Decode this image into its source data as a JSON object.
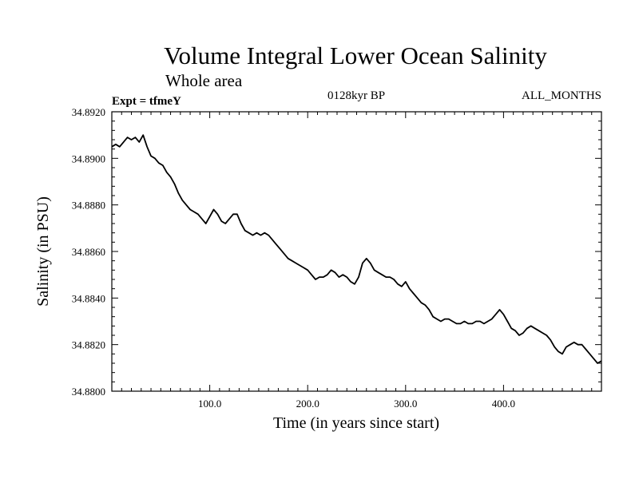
{
  "chart_data": {
    "type": "line",
    "title": "Volume Integral Lower Ocean Salinity",
    "subtitle": "Whole area",
    "left_label": "Expt = tfmeY",
    "center_label": "0128kyr BP",
    "right_label": "ALL_MONTHS",
    "xlabel": "Time (in years since start)",
    "ylabel": "Salinity (in PSU)",
    "xlim": [
      0,
      500
    ],
    "ylim": [
      34.88,
      34.892
    ],
    "xticks": [
      100,
      200,
      300,
      400
    ],
    "xtick_labels": [
      "100.0",
      "200.0",
      "300.0",
      "400.0"
    ],
    "yticks": [
      34.88,
      34.882,
      34.884,
      34.886,
      34.888,
      34.89,
      34.892
    ],
    "ytick_labels": [
      "34.8800",
      "34.8820",
      "34.8840",
      "34.8860",
      "34.8880",
      "34.8900",
      "34.8920"
    ],
    "grid": false,
    "series": [
      {
        "color": "#000000",
        "x": [
          0,
          4,
          8,
          12,
          16,
          20,
          24,
          28,
          32,
          36,
          40,
          44,
          48,
          52,
          56,
          60,
          64,
          68,
          72,
          76,
          80,
          84,
          88,
          92,
          96,
          100,
          104,
          108,
          112,
          116,
          120,
          124,
          128,
          132,
          136,
          140,
          144,
          148,
          152,
          156,
          160,
          164,
          168,
          172,
          176,
          180,
          184,
          188,
          192,
          196,
          200,
          204,
          208,
          212,
          216,
          220,
          224,
          228,
          232,
          236,
          240,
          244,
          248,
          252,
          256,
          260,
          264,
          268,
          272,
          276,
          280,
          284,
          288,
          292,
          296,
          300,
          304,
          308,
          312,
          316,
          320,
          324,
          328,
          332,
          336,
          340,
          344,
          348,
          352,
          356,
          360,
          364,
          368,
          372,
          376,
          380,
          384,
          388,
          392,
          396,
          400,
          404,
          408,
          412,
          416,
          420,
          424,
          428,
          432,
          436,
          440,
          444,
          448,
          452,
          456,
          460,
          464,
          468,
          472,
          476,
          480,
          484,
          488,
          492,
          496,
          500
        ],
        "y": [
          34.8905,
          34.8906,
          34.8905,
          34.8907,
          34.8909,
          34.8908,
          34.8909,
          34.8907,
          34.891,
          34.8905,
          34.8901,
          34.89,
          34.8898,
          34.8897,
          34.8894,
          34.8892,
          34.8889,
          34.8885,
          34.8882,
          34.888,
          34.8878,
          34.8877,
          34.8876,
          34.8874,
          34.8872,
          34.8875,
          34.8878,
          34.8876,
          34.8873,
          34.8872,
          34.8874,
          34.8876,
          34.8876,
          34.8872,
          34.8869,
          34.8868,
          34.8867,
          34.8868,
          34.8867,
          34.8868,
          34.8867,
          34.8865,
          34.8863,
          34.8861,
          34.8859,
          34.8857,
          34.8856,
          34.8855,
          34.8854,
          34.8853,
          34.8852,
          34.885,
          34.8848,
          34.8849,
          34.8849,
          34.885,
          34.8852,
          34.8851,
          34.8849,
          34.885,
          34.8849,
          34.8847,
          34.8846,
          34.8849,
          34.8855,
          34.8857,
          34.8855,
          34.8852,
          34.8851,
          34.885,
          34.8849,
          34.8849,
          34.8848,
          34.8846,
          34.8845,
          34.8847,
          34.8844,
          34.8842,
          34.884,
          34.8838,
          34.8837,
          34.8835,
          34.8832,
          34.8831,
          34.883,
          34.8831,
          34.8831,
          34.883,
          34.8829,
          34.8829,
          34.883,
          34.8829,
          34.8829,
          34.883,
          34.883,
          34.8829,
          34.883,
          34.8831,
          34.8833,
          34.8835,
          34.8833,
          34.883,
          34.8827,
          34.8826,
          34.8824,
          34.8825,
          34.8827,
          34.8828,
          34.8827,
          34.8826,
          34.8825,
          34.8824,
          34.8822,
          34.8819,
          34.8817,
          34.8816,
          34.8819,
          34.882,
          34.8821,
          34.882,
          34.882,
          34.8818,
          34.8816,
          34.8814,
          34.8812,
          34.8813
        ]
      }
    ]
  }
}
